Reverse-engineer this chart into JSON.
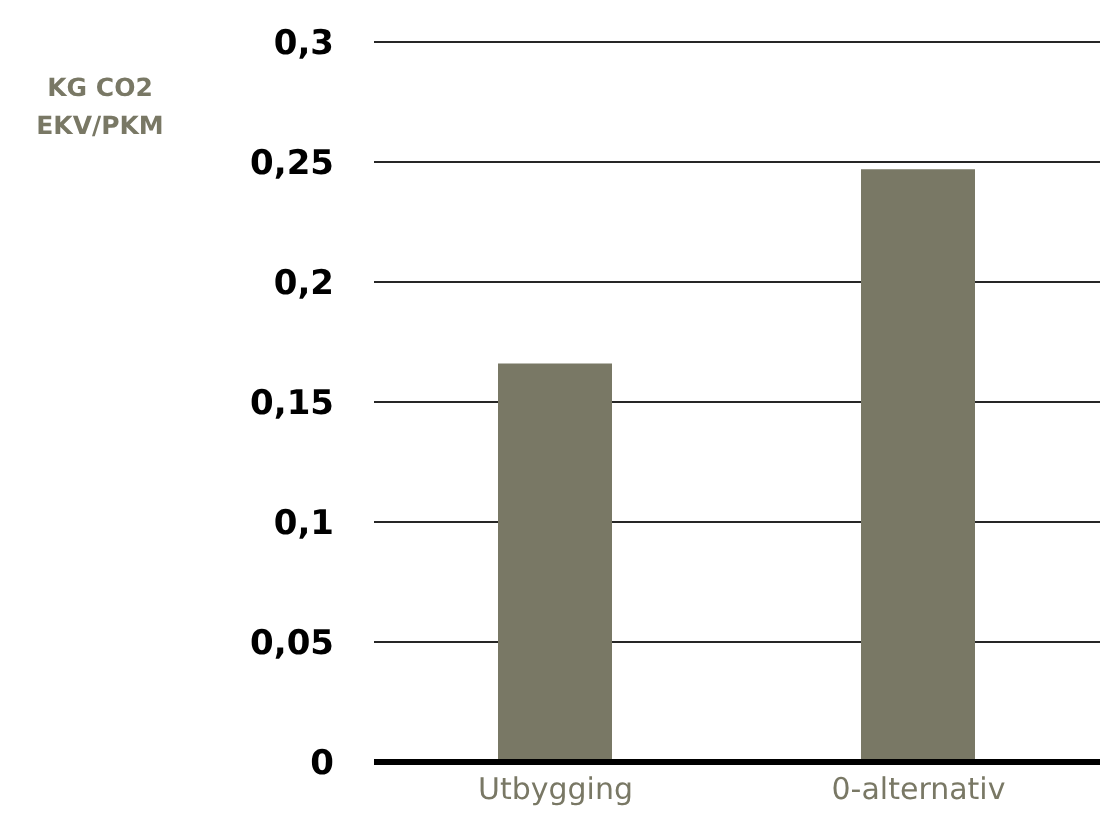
{
  "chart_data": {
    "type": "bar",
    "ylabel": "KG CO2 EKV/PKM",
    "categories": [
      "Utbygging",
      "0-alternativ"
    ],
    "series": [
      {
        "color": "#797865",
        "values": [
          0.166,
          0.247
        ]
      }
    ],
    "ylim": [
      0,
      0.3
    ],
    "yticks": [
      {
        "value": 0,
        "label": "0"
      },
      {
        "value": 0.05,
        "label": "0,05"
      },
      {
        "value": 0.1,
        "label": "0,1"
      },
      {
        "value": 0.15,
        "label": "0,15"
      },
      {
        "value": 0.2,
        "label": "0,2"
      },
      {
        "value": 0.25,
        "label": "0,25"
      },
      {
        "value": 0.3,
        "label": "0,3"
      }
    ],
    "grid": "y",
    "legend": false
  }
}
